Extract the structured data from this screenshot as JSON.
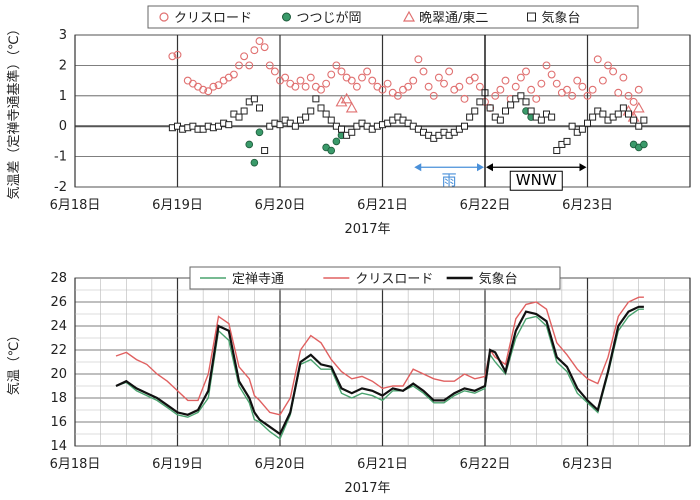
{
  "chart_data": [
    {
      "type": "scatter",
      "ylabel": "気温差（定禅寺通基準）（℃）",
      "xlabel": "2017年",
      "x_tick_labels": [
        "6月18日",
        "6月19日",
        "6月20日",
        "6月21日",
        "6月22日",
        "6月23日"
      ],
      "ylim": [
        -2,
        3
      ],
      "xlim": [
        0,
        6
      ],
      "y_ticks": [
        "-2",
        "-1",
        "0",
        "1",
        "2",
        "3"
      ],
      "grid": true,
      "legend_position": "top",
      "annotations": [
        {
          "text": "雨",
          "from": 3.3,
          "to": 4.0,
          "color": "#4a90d9"
        },
        {
          "text": "WNW",
          "from": 4.0,
          "to": 5.0,
          "color": "#000000"
        }
      ],
      "series": [
        {
          "name": "クリスロード",
          "marker": "circle-open",
          "color": "#e07070",
          "x": [
            0.95,
            1.0,
            1.1,
            1.15,
            1.2,
            1.25,
            1.3,
            1.35,
            1.4,
            1.45,
            1.5,
            1.55,
            1.6,
            1.65,
            1.7,
            1.75,
            1.8,
            1.85,
            1.9,
            1.95,
            2.0,
            2.05,
            2.1,
            2.15,
            2.2,
            2.25,
            2.3,
            2.35,
            2.4,
            2.45,
            2.5,
            2.55,
            2.6,
            2.65,
            2.7,
            2.75,
            2.8,
            2.85,
            2.9,
            2.95,
            3.0,
            3.05,
            3.1,
            3.15,
            3.2,
            3.25,
            3.3,
            3.35,
            3.4,
            3.45,
            3.5,
            3.55,
            3.6,
            3.65,
            3.7,
            3.75,
            3.8,
            3.85,
            3.9,
            3.95,
            4.0,
            4.05,
            4.1,
            4.15,
            4.2,
            4.25,
            4.3,
            4.35,
            4.4,
            4.45,
            4.5,
            4.55,
            4.6,
            4.65,
            4.7,
            4.75,
            4.8,
            4.85,
            4.9,
            4.95,
            5.0,
            5.05,
            5.1,
            5.15,
            5.2,
            5.25,
            5.3,
            5.35,
            5.4,
            5.45,
            5.5
          ],
          "y": [
            2.3,
            2.35,
            1.5,
            1.4,
            1.3,
            1.2,
            1.15,
            1.3,
            1.35,
            1.5,
            1.6,
            1.7,
            2.0,
            2.3,
            2.0,
            2.5,
            2.8,
            2.6,
            2.0,
            1.8,
            1.5,
            1.6,
            1.4,
            1.3,
            1.5,
            1.3,
            1.6,
            1.3,
            1.2,
            1.4,
            1.7,
            2.0,
            1.8,
            1.6,
            1.5,
            1.3,
            1.6,
            1.8,
            1.5,
            1.3,
            1.2,
            1.4,
            1.1,
            1.0,
            1.2,
            1.3,
            1.5,
            2.2,
            1.8,
            1.3,
            1.0,
            1.6,
            1.4,
            1.8,
            1.2,
            1.3,
            0.9,
            1.5,
            1.6,
            1.3,
            0.8,
            0.6,
            1.0,
            1.2,
            1.5,
            0.9,
            1.3,
            1.6,
            1.8,
            1.2,
            0.9,
            1.4,
            2.0,
            1.7,
            1.4,
            1.1,
            1.2,
            1.0,
            1.5,
            1.3,
            1.0,
            1.2,
            2.2,
            1.5,
            2.0,
            1.8,
            1.1,
            1.6,
            1.0,
            0.8,
            1.2
          ]
        },
        {
          "name": "つつじが岡",
          "marker": "circle-filled",
          "color": "#3a9a6a",
          "x": [
            1.7,
            1.75,
            1.8,
            2.45,
            2.5,
            2.55,
            2.6,
            4.4,
            4.45,
            5.45,
            5.5,
            5.55
          ],
          "y": [
            -0.6,
            -1.2,
            -0.2,
            -0.7,
            -0.8,
            -0.5,
            -0.3,
            0.5,
            0.3,
            -0.6,
            -0.7,
            -0.6
          ],
          "note": "some green points scattered"
        },
        {
          "name": "晩翠通/東二",
          "marker": "triangle-open",
          "color": "#e07070",
          "x": [
            2.6,
            2.65,
            2.7,
            5.4,
            5.45,
            5.5
          ],
          "y": [
            0.8,
            0.9,
            0.6,
            0.5,
            0.3,
            0.6
          ]
        },
        {
          "name": "気象台",
          "marker": "square-open",
          "color": "#222222",
          "x": [
            0.95,
            1.0,
            1.05,
            1.1,
            1.15,
            1.2,
            1.25,
            1.3,
            1.35,
            1.4,
            1.45,
            1.5,
            1.55,
            1.6,
            1.65,
            1.7,
            1.75,
            1.8,
            1.85,
            1.9,
            1.95,
            2.0,
            2.05,
            2.1,
            2.15,
            2.2,
            2.25,
            2.3,
            2.35,
            2.4,
            2.45,
            2.5,
            2.55,
            2.6,
            2.65,
            2.7,
            2.75,
            2.8,
            2.85,
            2.9,
            2.95,
            3.0,
            3.05,
            3.1,
            3.15,
            3.2,
            3.25,
            3.3,
            3.35,
            3.4,
            3.45,
            3.5,
            3.55,
            3.6,
            3.65,
            3.7,
            3.75,
            3.8,
            3.85,
            3.9,
            3.95,
            4.0,
            4.05,
            4.1,
            4.15,
            4.2,
            4.25,
            4.3,
            4.35,
            4.4,
            4.45,
            4.5,
            4.55,
            4.6,
            4.65,
            4.7,
            4.75,
            4.8,
            4.85,
            4.9,
            4.95,
            5.0,
            5.05,
            5.1,
            5.15,
            5.2,
            5.25,
            5.3,
            5.35,
            5.4,
            5.45,
            5.5,
            5.55
          ],
          "y": [
            -0.05,
            0.0,
            -0.1,
            -0.05,
            0.0,
            -0.1,
            -0.1,
            0.0,
            -0.05,
            0.0,
            0.1,
            0.05,
            0.4,
            0.3,
            0.5,
            0.8,
            0.9,
            0.6,
            -0.8,
            0.0,
            0.1,
            0.05,
            0.2,
            0.1,
            0.0,
            0.2,
            0.3,
            0.5,
            0.9,
            0.6,
            0.4,
            0.2,
            0.0,
            -0.1,
            -0.3,
            -0.2,
            0.0,
            0.1,
            0.0,
            -0.1,
            0.0,
            0.05,
            0.1,
            0.2,
            0.3,
            0.2,
            0.1,
            0.0,
            -0.1,
            -0.2,
            -0.3,
            -0.4,
            -0.3,
            -0.2,
            -0.3,
            -0.2,
            -0.1,
            0.0,
            0.3,
            0.5,
            0.8,
            1.1,
            0.6,
            0.3,
            0.2,
            0.5,
            0.7,
            0.9,
            1.0,
            0.8,
            0.5,
            0.3,
            0.2,
            0.4,
            0.3,
            -0.8,
            -0.6,
            -0.5,
            0.0,
            -0.2,
            -0.1,
            0.1,
            0.3,
            0.5,
            0.4,
            0.2,
            0.3,
            0.4,
            0.6,
            0.4,
            0.2,
            0.0,
            0.2
          ]
        }
      ]
    },
    {
      "type": "line",
      "ylabel": "気温（℃）",
      "xlabel": "2017年",
      "x_tick_labels": [
        "6月18日",
        "6月19日",
        "6月20日",
        "6月21日",
        "6月22日",
        "6月23日"
      ],
      "ylim": [
        14,
        28
      ],
      "xlim": [
        0,
        6
      ],
      "y_ticks": [
        "14",
        "16",
        "18",
        "20",
        "22",
        "24",
        "26",
        "28"
      ],
      "grid": true,
      "legend_position": "top",
      "series": [
        {
          "name": "定禅寺通",
          "color": "#4aa36f",
          "x": [
            0.4,
            0.5,
            0.6,
            0.7,
            0.8,
            0.9,
            1.0,
            1.1,
            1.2,
            1.3,
            1.4,
            1.5,
            1.6,
            1.7,
            1.75,
            1.8,
            1.9,
            2.0,
            2.1,
            2.2,
            2.3,
            2.4,
            2.5,
            2.6,
            2.7,
            2.8,
            2.9,
            3.0,
            3.1,
            3.2,
            3.3,
            3.4,
            3.5,
            3.6,
            3.7,
            3.8,
            3.9,
            4.0,
            4.05,
            4.1,
            4.2,
            4.3,
            4.4,
            4.5,
            4.6,
            4.7,
            4.8,
            4.9,
            5.0,
            5.1,
            5.2,
            5.3,
            5.4,
            5.5,
            5.55
          ],
          "y": [
            19.0,
            19.3,
            18.6,
            18.2,
            17.8,
            17.2,
            16.6,
            16.4,
            16.8,
            18.0,
            23.6,
            22.8,
            19.0,
            17.6,
            16.2,
            16.0,
            15.2,
            14.6,
            16.6,
            20.8,
            21.2,
            20.4,
            20.4,
            18.4,
            18.0,
            18.4,
            18.2,
            17.8,
            18.6,
            18.6,
            19.0,
            18.4,
            17.6,
            17.6,
            18.2,
            18.6,
            18.4,
            18.8,
            21.6,
            21.0,
            20.0,
            23.0,
            24.6,
            24.8,
            24.0,
            21.0,
            20.2,
            18.4,
            17.6,
            16.8,
            20.0,
            23.6,
            24.8,
            25.4,
            25.4
          ]
        },
        {
          "name": "クリスロード",
          "color": "#e06060",
          "x": [
            0.4,
            0.5,
            0.6,
            0.7,
            0.8,
            0.9,
            1.0,
            1.1,
            1.2,
            1.3,
            1.4,
            1.5,
            1.6,
            1.7,
            1.75,
            1.8,
            1.9,
            2.0,
            2.1,
            2.2,
            2.3,
            2.4,
            2.5,
            2.6,
            2.7,
            2.8,
            2.9,
            3.0,
            3.1,
            3.2,
            3.3,
            3.4,
            3.5,
            3.6,
            3.7,
            3.8,
            3.9,
            4.0,
            4.05,
            4.1,
            4.2,
            4.3,
            4.4,
            4.5,
            4.6,
            4.7,
            4.8,
            4.9,
            5.0,
            5.1,
            5.2,
            5.3,
            5.4,
            5.5,
            5.55
          ],
          "y": [
            21.5,
            21.8,
            21.2,
            20.8,
            20.0,
            19.4,
            18.6,
            17.8,
            17.8,
            20.0,
            24.8,
            24.2,
            20.6,
            19.6,
            18.2,
            17.8,
            16.8,
            16.6,
            18.0,
            22.0,
            23.2,
            22.6,
            21.2,
            20.2,
            19.6,
            19.8,
            19.4,
            18.8,
            19.0,
            19.0,
            20.4,
            20.0,
            19.6,
            19.4,
            19.4,
            20.0,
            19.6,
            19.8,
            22.0,
            21.4,
            20.8,
            24.6,
            25.8,
            26.0,
            25.4,
            22.6,
            21.6,
            20.4,
            19.6,
            19.2,
            21.4,
            24.8,
            26.0,
            26.4,
            26.4
          ]
        },
        {
          "name": "気象台",
          "color": "#111111",
          "x": [
            0.4,
            0.5,
            0.6,
            0.7,
            0.8,
            0.9,
            1.0,
            1.1,
            1.2,
            1.3,
            1.4,
            1.5,
            1.6,
            1.7,
            1.75,
            1.8,
            1.9,
            2.0,
            2.1,
            2.2,
            2.3,
            2.4,
            2.5,
            2.6,
            2.7,
            2.8,
            2.9,
            3.0,
            3.1,
            3.2,
            3.3,
            3.4,
            3.5,
            3.6,
            3.7,
            3.8,
            3.9,
            4.0,
            4.05,
            4.1,
            4.2,
            4.3,
            4.4,
            4.5,
            4.6,
            4.7,
            4.8,
            4.9,
            5.0,
            5.1,
            5.2,
            5.3,
            5.4,
            5.5,
            5.55
          ],
          "y": [
            19.0,
            19.4,
            18.8,
            18.4,
            18.0,
            17.4,
            16.8,
            16.6,
            17.0,
            18.6,
            24.0,
            23.6,
            19.4,
            18.0,
            16.8,
            16.2,
            15.6,
            15.0,
            16.8,
            21.0,
            21.6,
            20.8,
            20.6,
            18.8,
            18.4,
            18.8,
            18.6,
            18.2,
            18.8,
            18.6,
            19.2,
            18.6,
            17.8,
            17.8,
            18.4,
            18.8,
            18.6,
            19.0,
            22.0,
            21.8,
            20.2,
            23.6,
            25.2,
            25.0,
            24.4,
            21.4,
            20.6,
            18.8,
            17.8,
            17.0,
            20.2,
            24.0,
            25.2,
            25.6,
            25.6
          ]
        }
      ]
    }
  ]
}
